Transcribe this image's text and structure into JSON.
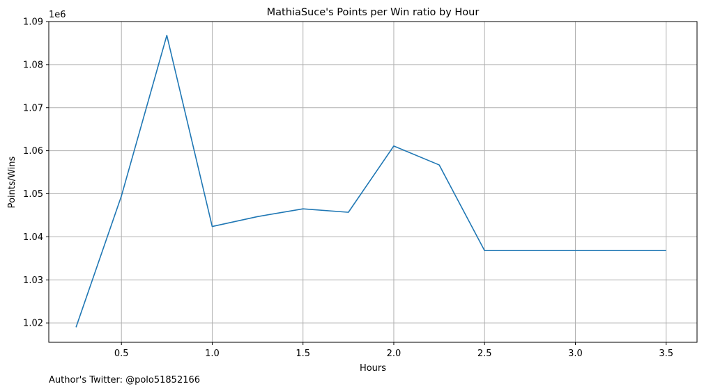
{
  "chart_data": {
    "type": "line",
    "title": "MathiaSuce's Points per Win ratio by Hour",
    "xlabel": "Hours",
    "ylabel": "Points/Wins",
    "y_offset_label": "1e6",
    "xlim": [
      0.1,
      3.67
    ],
    "ylim": [
      1.0155,
      1.09
    ],
    "grid": true,
    "x_ticks": [
      0.5,
      1.0,
      1.5,
      2.0,
      2.5,
      3.0,
      3.5
    ],
    "x_tick_labels": [
      "0.5",
      "1.0",
      "1.5",
      "2.0",
      "2.5",
      "3.0",
      "3.5"
    ],
    "y_ticks": [
      1.02,
      1.03,
      1.04,
      1.05,
      1.06,
      1.07,
      1.08,
      1.09
    ],
    "y_tick_labels": [
      "1.02",
      "1.03",
      "1.04",
      "1.05",
      "1.06",
      "1.07",
      "1.08",
      "1.09"
    ],
    "series": [
      {
        "color": "#1f77b4",
        "x": [
          0.25,
          0.5,
          0.75,
          1.0,
          1.25,
          1.5,
          1.75,
          2.0,
          2.25,
          2.5,
          2.75,
          3.0,
          3.25,
          3.5
        ],
        "y": [
          1.019,
          1.0495,
          1.0868,
          1.0424,
          1.0447,
          1.0465,
          1.0457,
          1.0611,
          1.0567,
          1.0368,
          1.0368,
          1.0368,
          1.0368,
          1.0368
        ]
      }
    ]
  },
  "footer": {
    "text": "Author's Twitter: @polo51852166"
  }
}
